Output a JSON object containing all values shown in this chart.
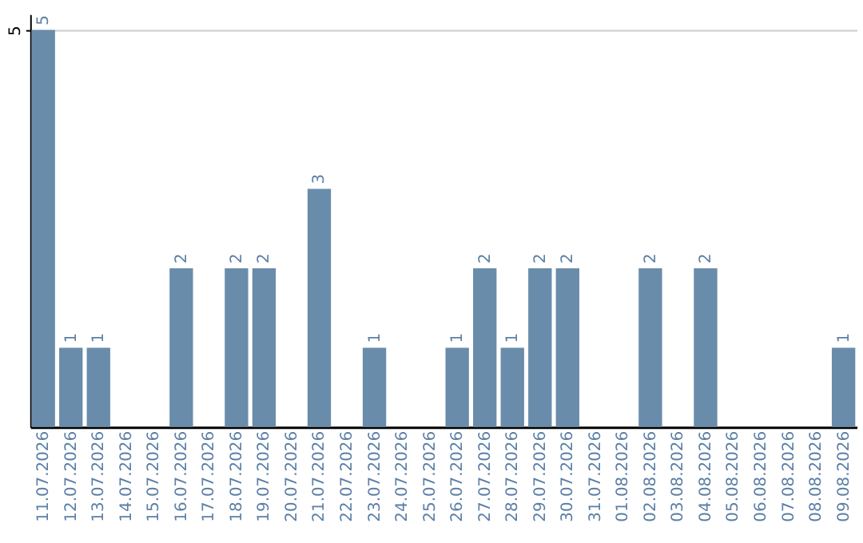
{
  "chart_data": {
    "type": "bar",
    "categories": [
      "11.07.2026",
      "12.07.2026",
      "13.07.2026",
      "14.07.2026",
      "15.07.2026",
      "16.07.2026",
      "17.07.2026",
      "18.07.2026",
      "19.07.2026",
      "20.07.2026",
      "21.07.2026",
      "22.07.2026",
      "23.07.2026",
      "24.07.2026",
      "25.07.2026",
      "26.07.2026",
      "27.07.2026",
      "28.07.2026",
      "29.07.2026",
      "30.07.2026",
      "31.07.2026",
      "01.08.2026",
      "02.08.2026",
      "03.08.2026",
      "04.08.2026",
      "05.08.2026",
      "06.08.2026",
      "07.08.2026",
      "08.08.2026",
      "09.08.2026"
    ],
    "values": [
      5,
      1,
      1,
      0,
      0,
      2,
      0,
      2,
      2,
      0,
      3,
      0,
      1,
      0,
      0,
      1,
      2,
      1,
      2,
      2,
      0,
      0,
      2,
      0,
      2,
      0,
      0,
      0,
      0,
      1
    ],
    "value_labels": [
      "5",
      "1",
      "1",
      null,
      null,
      "2",
      null,
      "2",
      "2",
      null,
      "3",
      null,
      "1",
      null,
      null,
      "1",
      "2",
      "1",
      "2",
      "2",
      null,
      null,
      "2",
      null,
      "2",
      null,
      null,
      null,
      null,
      "1"
    ],
    "color": "#6a8cab",
    "ylim": [
      0,
      5.2
    ],
    "yticks": [
      5
    ],
    "grid": "y"
  }
}
